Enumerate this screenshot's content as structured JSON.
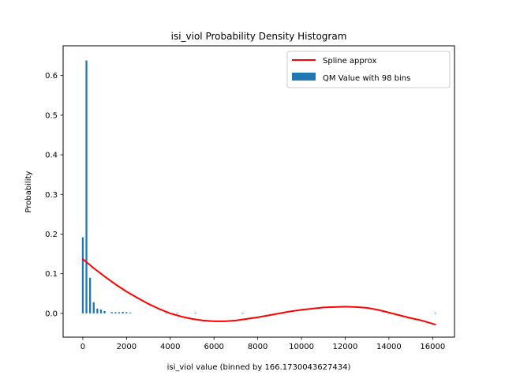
{
  "chart_data": {
    "type": "bar",
    "title": "isi_viol Probability Density Histogram",
    "xlabel": "isi_viol value (binned by 166.1730043627434)",
    "ylabel": "Probability",
    "xlim": [
      -900,
      17000
    ],
    "ylim": [
      -0.06,
      0.675
    ],
    "x_ticks": [
      0,
      2000,
      4000,
      6000,
      8000,
      10000,
      12000,
      14000,
      16000
    ],
    "x_tick_labels": [
      "0",
      "2000",
      "4000",
      "6000",
      "8000",
      "10000",
      "12000",
      "14000",
      "16000"
    ],
    "y_ticks": [
      0.0,
      0.1,
      0.2,
      0.3,
      0.4,
      0.5,
      0.6
    ],
    "y_tick_labels": [
      "0.0",
      "0.1",
      "0.2",
      "0.3",
      "0.4",
      "0.5",
      "0.6"
    ],
    "grid": false,
    "legend": {
      "placement": "top-right",
      "entries": [
        {
          "label": "Spline approx",
          "kind": "line",
          "color": "#ff0000"
        },
        {
          "label": "QM Value with 98 bins",
          "kind": "bar",
          "color": "#1f77b4"
        }
      ]
    },
    "bar_color": "#1f77b4",
    "bar_width": 83,
    "bars": [
      {
        "x": 0,
        "y": 0.192
      },
      {
        "x": 166,
        "y": 0.638
      },
      {
        "x": 332,
        "y": 0.09
      },
      {
        "x": 499,
        "y": 0.028
      },
      {
        "x": 665,
        "y": 0.012
      },
      {
        "x": 831,
        "y": 0.01
      },
      {
        "x": 997,
        "y": 0.006
      },
      {
        "x": 1330,
        "y": 0.003
      },
      {
        "x": 1496,
        "y": 0.003
      },
      {
        "x": 1662,
        "y": 0.003
      },
      {
        "x": 1828,
        "y": 0.004
      },
      {
        "x": 1994,
        "y": 0.003
      },
      {
        "x": 2160,
        "y": 0.002
      },
      {
        "x": 3822,
        "y": 0.001
      },
      {
        "x": 3988,
        "y": 0.001
      },
      {
        "x": 4321,
        "y": 0.001
      },
      {
        "x": 5151,
        "y": 0.001
      },
      {
        "x": 7312,
        "y": 0.001
      },
      {
        "x": 16118,
        "y": 0.001
      }
    ],
    "spline": {
      "name": "Spline approx",
      "color": "#ff0000",
      "x": [
        0,
        500,
        1000,
        1500,
        2000,
        2500,
        3000,
        3500,
        4000,
        4500,
        5000,
        5500,
        6000,
        6500,
        7000,
        7500,
        8000,
        8500,
        9000,
        9500,
        10000,
        10500,
        11000,
        11500,
        12000,
        12500,
        13000,
        13500,
        14000,
        14500,
        15000,
        15500,
        16118
      ],
      "y": [
        0.137,
        0.114,
        0.093,
        0.073,
        0.055,
        0.039,
        0.024,
        0.011,
        0.0,
        -0.008,
        -0.014,
        -0.018,
        -0.02,
        -0.02,
        -0.018,
        -0.014,
        -0.01,
        -0.005,
        0.0,
        0.005,
        0.009,
        0.012,
        0.015,
        0.016,
        0.017,
        0.016,
        0.014,
        0.009,
        0.002,
        -0.005,
        -0.012,
        -0.018,
        -0.028
      ]
    }
  }
}
